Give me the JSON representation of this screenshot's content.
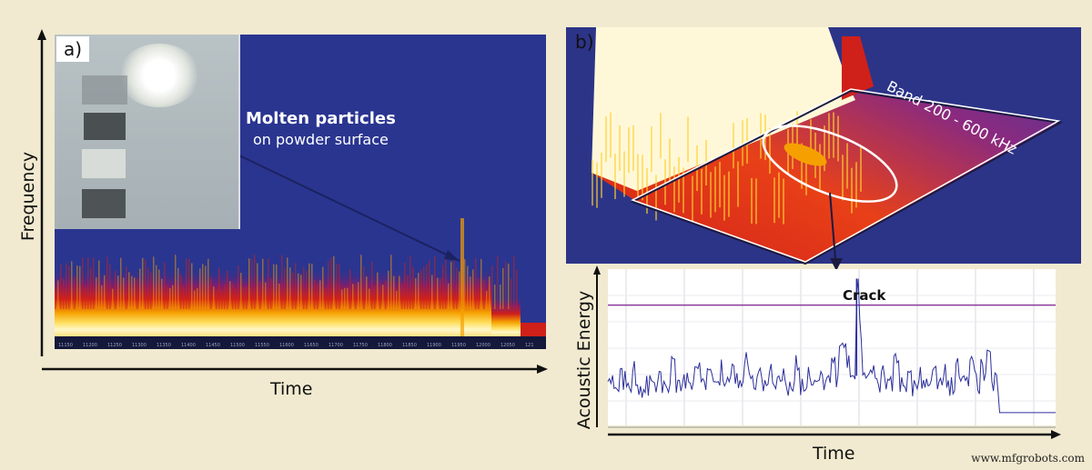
{
  "watermark": "www.mfgrobots.com",
  "colors": {
    "background": "#f1ead0",
    "spectrogram_bg": "#2a3590",
    "hot": "#fff7b0",
    "warm": "#f5a000",
    "red": "#d0201a",
    "signal": "#2c2f9a",
    "threshold": "#8a3a9a"
  },
  "chart_data": [
    {
      "panel": "a)",
      "type": "heatmap",
      "xlabel": "Time",
      "ylabel": "Frequency",
      "x_tick_labels": [
        "11150",
        "11200",
        "11250",
        "11300",
        "11350",
        "11400",
        "11450",
        "11500",
        "11550",
        "11600",
        "11650",
        "11700",
        "11750",
        "11800",
        "11850",
        "11900",
        "11950",
        "12000",
        "12050",
        "121"
      ],
      "annotation": {
        "title": "Molten particles",
        "subtitle": "on powder surface"
      },
      "inset": "photograph of laser melting with molten particles circled"
    },
    {
      "panel": "b)",
      "type": "surface",
      "annotation": "Band 200 - 600 kHz"
    },
    {
      "panel": "b)",
      "type": "line",
      "xlabel": "Time",
      "ylabel": "Acoustic Energy",
      "grid": true,
      "annotation": "Crack",
      "threshold": 0.78,
      "crack_peak": 0.96,
      "values": [
        0.28,
        0.22,
        0.35,
        0.25,
        0.4,
        0.23,
        0.3,
        0.26,
        0.33,
        0.24,
        0.43,
        0.27,
        0.31,
        0.25,
        0.36,
        0.28,
        0.34,
        0.26,
        0.41,
        0.29,
        0.37,
        0.27,
        0.46,
        0.3,
        0.33,
        0.27,
        0.38,
        0.29,
        0.35,
        0.26,
        0.44,
        0.28,
        0.36,
        0.27,
        0.33,
        0.29,
        0.39,
        0.5,
        0.52,
        0.3,
        0.96,
        0.32,
        0.34,
        0.28,
        0.37,
        0.27,
        0.45,
        0.29,
        0.33,
        0.27,
        0.36,
        0.28,
        0.34,
        0.26,
        0.38,
        0.29,
        0.42,
        0.3,
        0.41,
        0.31,
        0.38,
        0.47,
        0.32,
        0.05,
        0.05,
        0.05,
        0.05,
        0.05,
        0.05,
        0.05,
        0.05,
        0.05,
        0.05
      ]
    }
  ]
}
